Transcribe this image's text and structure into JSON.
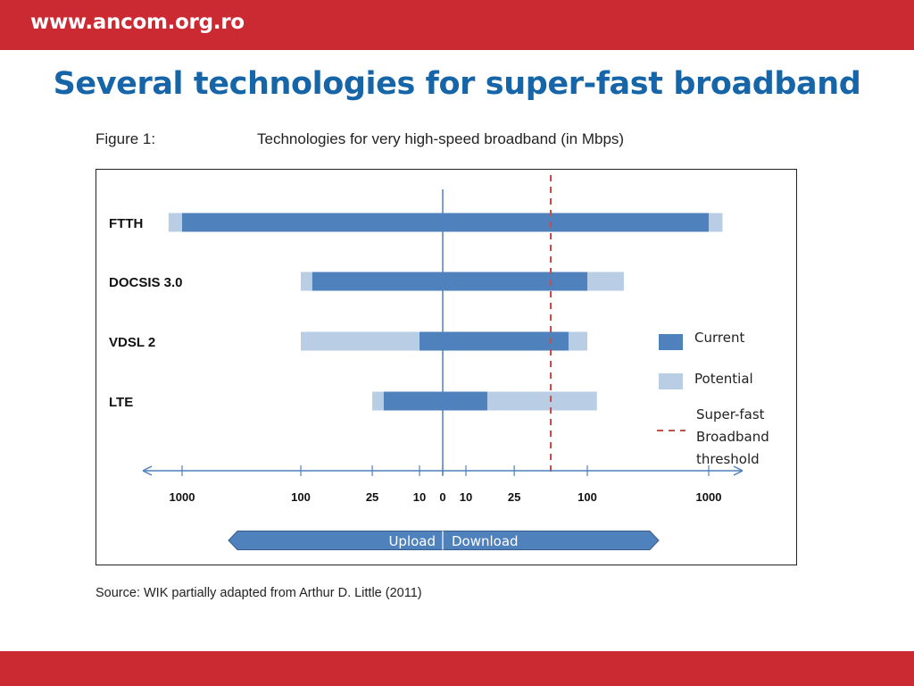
{
  "header": {
    "url": "www.ancom.org.ro"
  },
  "slide": {
    "title": "Several technologies for super-fast broadband"
  },
  "figure": {
    "caption": "Figure 1:",
    "title": "Technologies for very high-speed broadband (in Mbps)",
    "source": "Source: WIK partially adapted from Arthur D. Little (2011)"
  },
  "colors": {
    "brand_red": "#cc2a33",
    "title_blue": "#1565a8",
    "current": "#4f81bd",
    "potential": "#b9cde5",
    "threshold": "#c0504d",
    "axis": "#4f81bd"
  },
  "chart_data": {
    "type": "bar",
    "orientation": "horizontal",
    "scale": "two-sided log (Upload left of 0, Download right of 0)",
    "categories": [
      "FTTH",
      "DOCSIS 3.0",
      "VDSL 2",
      "LTE"
    ],
    "series": [
      {
        "name": "Current",
        "color": "#4f81bd",
        "values": [
          {
            "upload": 1000,
            "download": 1000
          },
          {
            "upload": 80,
            "download": 100
          },
          {
            "upload": 10,
            "download": 70
          },
          {
            "upload": 20,
            "download": 15
          }
        ]
      },
      {
        "name": "Potential",
        "color": "#b9cde5",
        "values": [
          {
            "upload": 1300,
            "download": 1300
          },
          {
            "upload": 100,
            "download": 200
          },
          {
            "upload": 100,
            "download": 100
          },
          {
            "upload": 25,
            "download": 120
          }
        ]
      }
    ],
    "threshold": {
      "label": "Super-fast Broadband threshold",
      "download": 50
    },
    "tick_labels": [
      "1000",
      "100",
      "25",
      "10",
      "0",
      "10",
      "25",
      "100",
      "1000"
    ],
    "direction_labels": {
      "upload": "Upload",
      "download": "Download"
    },
    "legend": {
      "current": "Current",
      "potential": "Potential",
      "threshold": [
        "Super-fast",
        "Broadband",
        "threshold"
      ],
      "position": "right"
    }
  }
}
